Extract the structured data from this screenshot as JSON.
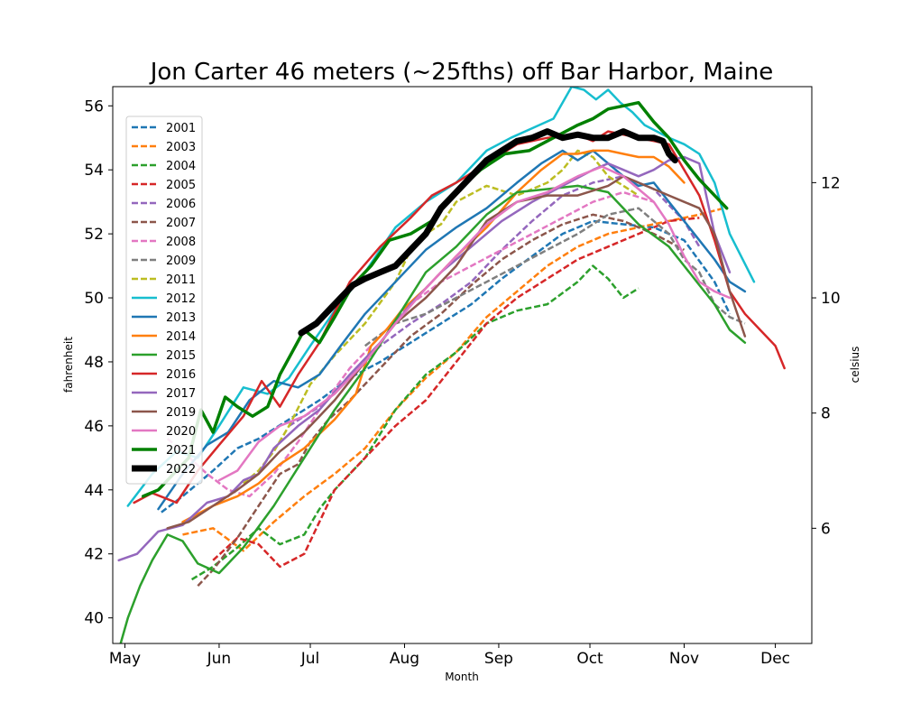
{
  "chart_data": {
    "type": "line",
    "title": "Jon Carter 46 meters (~25fths) off Bar Harbor, Maine",
    "xlabel": "Month",
    "ylabel": "fahrenheit",
    "ylabel_right": "celsius",
    "x_unit": "day of year",
    "xlim": [
      117,
      347
    ],
    "ylim": [
      39.2,
      56.6
    ],
    "x_ticks": [
      {
        "label": "May",
        "value": 121
      },
      {
        "label": "Jun",
        "value": 152
      },
      {
        "label": "Jul",
        "value": 182
      },
      {
        "label": "Aug",
        "value": 213
      },
      {
        "label": "Sep",
        "value": 244
      },
      {
        "label": "Oct",
        "value": 274
      },
      {
        "label": "Nov",
        "value": 305
      },
      {
        "label": "Dec",
        "value": 335
      }
    ],
    "y_ticks": [
      40,
      42,
      44,
      46,
      48,
      50,
      52,
      54,
      56
    ],
    "y_right_ticks": [
      6,
      8,
      10,
      12
    ],
    "grid": false,
    "legend_position": "upper-left",
    "series": [
      {
        "name": "2001",
        "color": "#1f77b4",
        "dashed": true,
        "width": 2.5,
        "x": [
          133,
          140,
          150,
          158,
          165,
          175,
          185,
          195,
          205,
          215,
          225,
          235,
          245,
          255,
          265,
          275,
          285,
          295,
          305,
          315,
          320
        ],
        "y": [
          43.3,
          43.8,
          44.6,
          45.3,
          45.6,
          46.2,
          46.8,
          47.5,
          48.0,
          48.6,
          49.2,
          49.8,
          50.6,
          51.3,
          52.0,
          52.4,
          52.3,
          52.2,
          51.8,
          50.5,
          49.5
        ]
      },
      {
        "name": "2003",
        "color": "#ff7f0e",
        "dashed": true,
        "width": 2.5,
        "x": [
          140,
          150,
          160,
          170,
          180,
          190,
          200,
          210,
          220,
          230,
          240,
          250,
          260,
          270,
          280,
          290,
          300,
          310,
          318
        ],
        "y": [
          42.6,
          42.8,
          42.1,
          43.0,
          43.8,
          44.5,
          45.3,
          46.5,
          47.5,
          48.3,
          49.4,
          50.2,
          51.0,
          51.6,
          52.0,
          52.2,
          52.4,
          52.6,
          52.8
        ]
      },
      {
        "name": "2004",
        "color": "#2ca02c",
        "dashed": true,
        "width": 2.5,
        "x": [
          143,
          150,
          158,
          165,
          172,
          180,
          185,
          190,
          200,
          210,
          220,
          230,
          240,
          250,
          260,
          270,
          275,
          280,
          285,
          290
        ],
        "y": [
          41.2,
          41.6,
          42.2,
          42.8,
          42.3,
          42.6,
          43.4,
          44.0,
          45.0,
          46.5,
          47.6,
          48.3,
          49.2,
          49.6,
          49.8,
          50.5,
          51.0,
          50.6,
          50.0,
          50.3
        ]
      },
      {
        "name": "2005",
        "color": "#d62728",
        "dashed": true,
        "width": 2.5,
        "x": [
          150,
          158,
          165,
          172,
          180,
          185,
          190,
          200,
          210,
          220,
          230,
          240,
          250,
          260,
          270,
          280,
          290,
          300,
          310
        ],
        "y": [
          41.8,
          42.5,
          42.3,
          41.6,
          42.0,
          43.0,
          44.0,
          45.0,
          46.0,
          46.8,
          48.0,
          49.2,
          50.0,
          50.6,
          51.2,
          51.6,
          52.0,
          52.4,
          52.5
        ]
      },
      {
        "name": "2006",
        "color": "#9467bd",
        "dashed": true,
        "width": 2.5,
        "x": [
          175,
          185,
          195,
          205,
          215,
          225,
          235,
          245,
          255,
          265,
          275,
          285,
          295,
          305,
          310
        ],
        "y": [
          46.0,
          46.6,
          47.5,
          48.5,
          49.2,
          49.8,
          50.5,
          51.5,
          52.4,
          53.2,
          53.6,
          53.8,
          53.4,
          52.4,
          51.6
        ]
      },
      {
        "name": "2007",
        "color": "#8c564b",
        "dashed": true,
        "width": 2.5,
        "x": [
          145,
          150,
          158,
          165,
          172,
          178,
          182,
          188,
          195,
          205,
          215,
          225,
          235,
          245,
          255,
          265,
          275,
          285,
          295,
          305
        ],
        "y": [
          41.0,
          41.5,
          42.5,
          43.5,
          44.5,
          44.8,
          45.5,
          46.2,
          46.8,
          47.8,
          48.8,
          49.5,
          50.4,
          51.2,
          51.8,
          52.3,
          52.6,
          52.4,
          52.0,
          51.5
        ]
      },
      {
        "name": "2008",
        "color": "#e377c2",
        "dashed": true,
        "width": 2.5,
        "x": [
          135,
          140,
          148,
          155,
          162,
          170,
          178,
          185,
          195,
          205,
          215,
          225,
          235,
          245,
          255,
          265,
          275,
          285,
          295
        ],
        "y": [
          45.6,
          45.2,
          44.5,
          44.0,
          43.8,
          44.5,
          45.5,
          46.5,
          47.8,
          48.8,
          49.8,
          50.5,
          51.0,
          51.5,
          52.0,
          52.5,
          53.0,
          53.3,
          53.0
        ]
      },
      {
        "name": "2009",
        "color": "#7f7f7f",
        "dashed": true,
        "width": 2.5,
        "x": [
          200,
          210,
          220,
          230,
          240,
          250,
          260,
          270,
          280,
          290,
          300,
          305,
          310,
          315,
          320,
          325
        ],
        "y": [
          48.5,
          49.2,
          49.5,
          50.0,
          50.5,
          51.0,
          51.5,
          52.0,
          52.6,
          52.8,
          52.0,
          51.2,
          50.8,
          49.8,
          49.4,
          49.2
        ]
      },
      {
        "name": "2011",
        "color": "#bcbd22",
        "dashed": true,
        "width": 2.5,
        "x": [
          160,
          165,
          170,
          175,
          182,
          190,
          200,
          210,
          215,
          220,
          225,
          230,
          240,
          250,
          260,
          265,
          270,
          275,
          280,
          285,
          290
        ],
        "y": [
          44.2,
          44.6,
          45.2,
          46.0,
          47.3,
          48.2,
          49.2,
          50.5,
          51.5,
          52.0,
          52.3,
          53.0,
          53.5,
          53.2,
          53.6,
          54.0,
          54.6,
          54.4,
          53.8,
          53.5,
          53.2
        ]
      },
      {
        "name": "2012",
        "color": "#17becf",
        "dashed": false,
        "width": 2.5,
        "x": [
          122,
          130,
          138,
          145,
          152,
          160,
          168,
          175,
          182,
          190,
          200,
          210,
          220,
          230,
          240,
          248,
          255,
          262,
          268,
          272,
          276,
          280,
          284,
          288,
          292,
          296,
          300,
          305,
          310,
          315,
          320,
          328
        ],
        "y": [
          43.5,
          44.5,
          45.2,
          45.0,
          46.0,
          47.2,
          47.0,
          47.5,
          48.5,
          49.6,
          50.8,
          52.2,
          53.0,
          53.6,
          54.6,
          55.0,
          55.3,
          55.6,
          56.6,
          56.5,
          56.2,
          56.5,
          56.1,
          55.8,
          55.4,
          55.2,
          55.0,
          54.8,
          54.5,
          53.6,
          52.0,
          50.5
        ]
      },
      {
        "name": "2013",
        "color": "#1f77b4",
        "dashed": false,
        "width": 2.5,
        "x": [
          132,
          140,
          148,
          155,
          162,
          170,
          178,
          185,
          192,
          200,
          210,
          220,
          230,
          240,
          250,
          258,
          265,
          270,
          275,
          280,
          285,
          290,
          295,
          300,
          305,
          310,
          315,
          320,
          325
        ],
        "y": [
          43.4,
          44.5,
          45.4,
          45.8,
          46.8,
          47.4,
          47.2,
          47.6,
          48.5,
          49.5,
          50.5,
          51.5,
          52.2,
          52.8,
          53.6,
          54.2,
          54.6,
          54.3,
          54.6,
          54.2,
          53.8,
          53.5,
          53.6,
          53.0,
          52.4,
          51.8,
          51.2,
          50.5,
          50.2
        ]
      },
      {
        "name": "2014",
        "color": "#ff7f0e",
        "dashed": false,
        "width": 2.5,
        "x": [
          140,
          150,
          158,
          165,
          172,
          180,
          190,
          197,
          202,
          207,
          212,
          220,
          230,
          240,
          250,
          258,
          265,
          270,
          275,
          280,
          285,
          290,
          295,
          300,
          305
        ],
        "y": [
          43.0,
          43.5,
          43.8,
          44.2,
          44.8,
          45.3,
          46.2,
          47.0,
          48.5,
          49.0,
          49.6,
          50.3,
          51.3,
          52.2,
          53.3,
          54.0,
          54.5,
          54.5,
          54.6,
          54.6,
          54.5,
          54.4,
          54.4,
          54.1,
          53.6
        ]
      },
      {
        "name": "2015",
        "color": "#2ca02c",
        "dashed": false,
        "width": 2.5,
        "x": [
          119,
          122,
          126,
          130,
          135,
          140,
          145,
          152,
          160,
          170,
          180,
          190,
          200,
          210,
          220,
          230,
          240,
          250,
          260,
          270,
          280,
          290,
          300,
          305,
          310,
          315,
          320,
          325
        ],
        "y": [
          39.0,
          40.0,
          41.0,
          41.8,
          42.6,
          42.4,
          41.7,
          41.4,
          42.2,
          43.5,
          45.0,
          46.5,
          47.8,
          49.3,
          50.8,
          51.6,
          52.6,
          53.3,
          53.4,
          53.5,
          53.3,
          52.3,
          51.6,
          51.0,
          50.4,
          49.8,
          49.0,
          48.6
        ]
      },
      {
        "name": "2016",
        "color": "#d62728",
        "dashed": false,
        "width": 2.5,
        "x": [
          124,
          130,
          138,
          145,
          152,
          160,
          166,
          172,
          178,
          185,
          195,
          205,
          215,
          222,
          230,
          240,
          250,
          260,
          270,
          275,
          280,
          290,
          300,
          305,
          310,
          315,
          320,
          325,
          330,
          335,
          338
        ],
        "y": [
          43.6,
          43.9,
          43.6,
          44.6,
          45.4,
          46.3,
          47.4,
          46.6,
          47.6,
          48.6,
          50.5,
          51.6,
          52.5,
          53.2,
          53.6,
          54.2,
          54.8,
          55.0,
          55.1,
          54.9,
          55.2,
          55.0,
          54.8,
          54.0,
          53.2,
          51.8,
          50.2,
          49.5,
          49.0,
          48.5,
          47.8
        ]
      },
      {
        "name": "2017",
        "color": "#9467bd",
        "dashed": false,
        "width": 2.5,
        "x": [
          119,
          125,
          132,
          140,
          148,
          155,
          160,
          165,
          170,
          178,
          185,
          195,
          205,
          215,
          225,
          235,
          245,
          255,
          265,
          275,
          280,
          285,
          290,
          295,
          300,
          305,
          310,
          315,
          320
        ],
        "y": [
          41.8,
          42.0,
          42.7,
          42.9,
          43.6,
          43.8,
          44.3,
          44.5,
          45.3,
          46.0,
          46.5,
          47.6,
          48.6,
          49.8,
          50.8,
          51.6,
          52.4,
          53.0,
          53.5,
          54.0,
          54.2,
          54.0,
          53.8,
          54.0,
          54.3,
          54.4,
          54.2,
          52.0,
          50.8
        ]
      },
      {
        "name": "2019",
        "color": "#8c564b",
        "dashed": false,
        "width": 2.5,
        "x": [
          135,
          142,
          150,
          158,
          165,
          172,
          180,
          190,
          200,
          210,
          220,
          230,
          240,
          250,
          260,
          270,
          280,
          285,
          290,
          295,
          300,
          305,
          310,
          315,
          320,
          325
        ],
        "y": [
          42.8,
          43.0,
          43.5,
          44.0,
          44.5,
          45.2,
          45.8,
          46.8,
          48.0,
          49.2,
          50.0,
          51.0,
          52.4,
          53.0,
          53.2,
          53.2,
          53.5,
          53.8,
          53.6,
          53.4,
          53.2,
          53.0,
          52.8,
          52.0,
          50.2,
          48.8
        ]
      },
      {
        "name": "2020",
        "color": "#e377c2",
        "dashed": false,
        "width": 2.5,
        "x": [
          152,
          158,
          165,
          172,
          180,
          190,
          200,
          210,
          220,
          230,
          240,
          250,
          260,
          270,
          278,
          285,
          290,
          295,
          300,
          305,
          310,
          315,
          320
        ],
        "y": [
          44.3,
          44.6,
          45.5,
          46.0,
          46.3,
          47.0,
          48.0,
          49.2,
          50.3,
          51.3,
          52.3,
          53.0,
          53.3,
          53.8,
          54.1,
          53.8,
          53.4,
          53.0,
          52.3,
          51.3,
          50.5,
          50.2,
          50.0
        ]
      },
      {
        "name": "2021",
        "color": "#008000",
        "dashed": false,
        "width": 3.5,
        "x": [
          127,
          132,
          137,
          142,
          146,
          150,
          154,
          158,
          163,
          168,
          172,
          176,
          180,
          185,
          190,
          196,
          202,
          208,
          215,
          222,
          230,
          238,
          246,
          254,
          262,
          270,
          275,
          280,
          285,
          290,
          295,
          300,
          305,
          310,
          315,
          319
        ],
        "y": [
          43.8,
          44.0,
          44.5,
          45.0,
          46.5,
          45.8,
          46.9,
          46.6,
          46.3,
          46.6,
          47.6,
          48.3,
          49.0,
          48.6,
          49.4,
          50.4,
          51.0,
          51.8,
          52.0,
          52.4,
          53.3,
          54.0,
          54.5,
          54.6,
          55.0,
          55.4,
          55.6,
          55.9,
          56.0,
          56.1,
          55.5,
          55.0,
          54.3,
          53.7,
          53.2,
          52.8
        ]
      },
      {
        "name": "2022",
        "color": "#000000",
        "dashed": false,
        "width": 7,
        "x": [
          179,
          184,
          188,
          192,
          196,
          200,
          205,
          210,
          215,
          220,
          225,
          230,
          235,
          240,
          245,
          250,
          255,
          260,
          265,
          270,
          275,
          280,
          285,
          290,
          295,
          298,
          300,
          302
        ],
        "y": [
          48.9,
          49.2,
          49.6,
          50.0,
          50.4,
          50.6,
          50.8,
          51.0,
          51.5,
          52.0,
          52.8,
          53.3,
          53.8,
          54.3,
          54.6,
          54.9,
          55.0,
          55.2,
          55.0,
          55.1,
          55.0,
          55.0,
          55.2,
          55.0,
          55.0,
          54.9,
          54.5,
          54.3
        ]
      }
    ]
  }
}
